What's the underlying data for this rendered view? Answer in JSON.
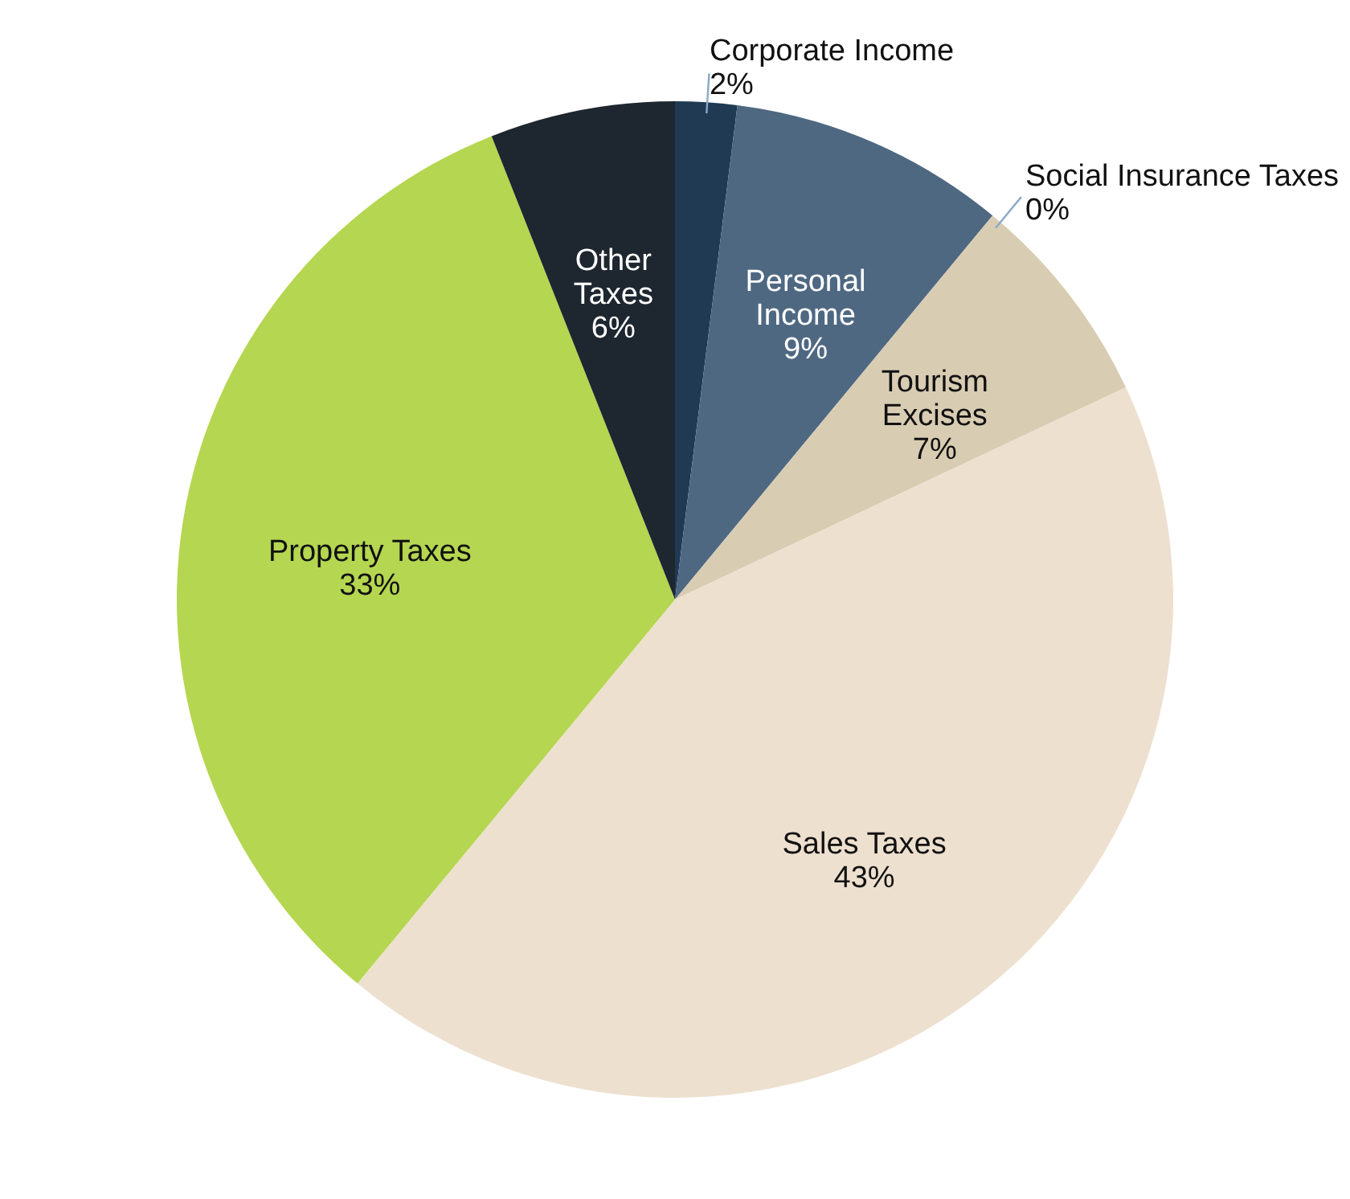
{
  "chart_data": {
    "type": "pie",
    "categories": [
      "Corporate Income",
      "Personal Income",
      "Social Insurance Taxes",
      "Tourism Excises",
      "Sales Taxes",
      "Property Taxes",
      "Other Taxes"
    ],
    "values": [
      2,
      9,
      0,
      7,
      43,
      33,
      6
    ],
    "colors": [
      "#1f3a52",
      "#4f6882",
      "#8aa8c8",
      "#d8ccb2",
      "#ede0cf",
      "#b5d650",
      "#1e262f"
    ],
    "value_labels": [
      "2%",
      "9%",
      "0%",
      "7%",
      "43%",
      "33%",
      "6%"
    ],
    "legend": false
  }
}
